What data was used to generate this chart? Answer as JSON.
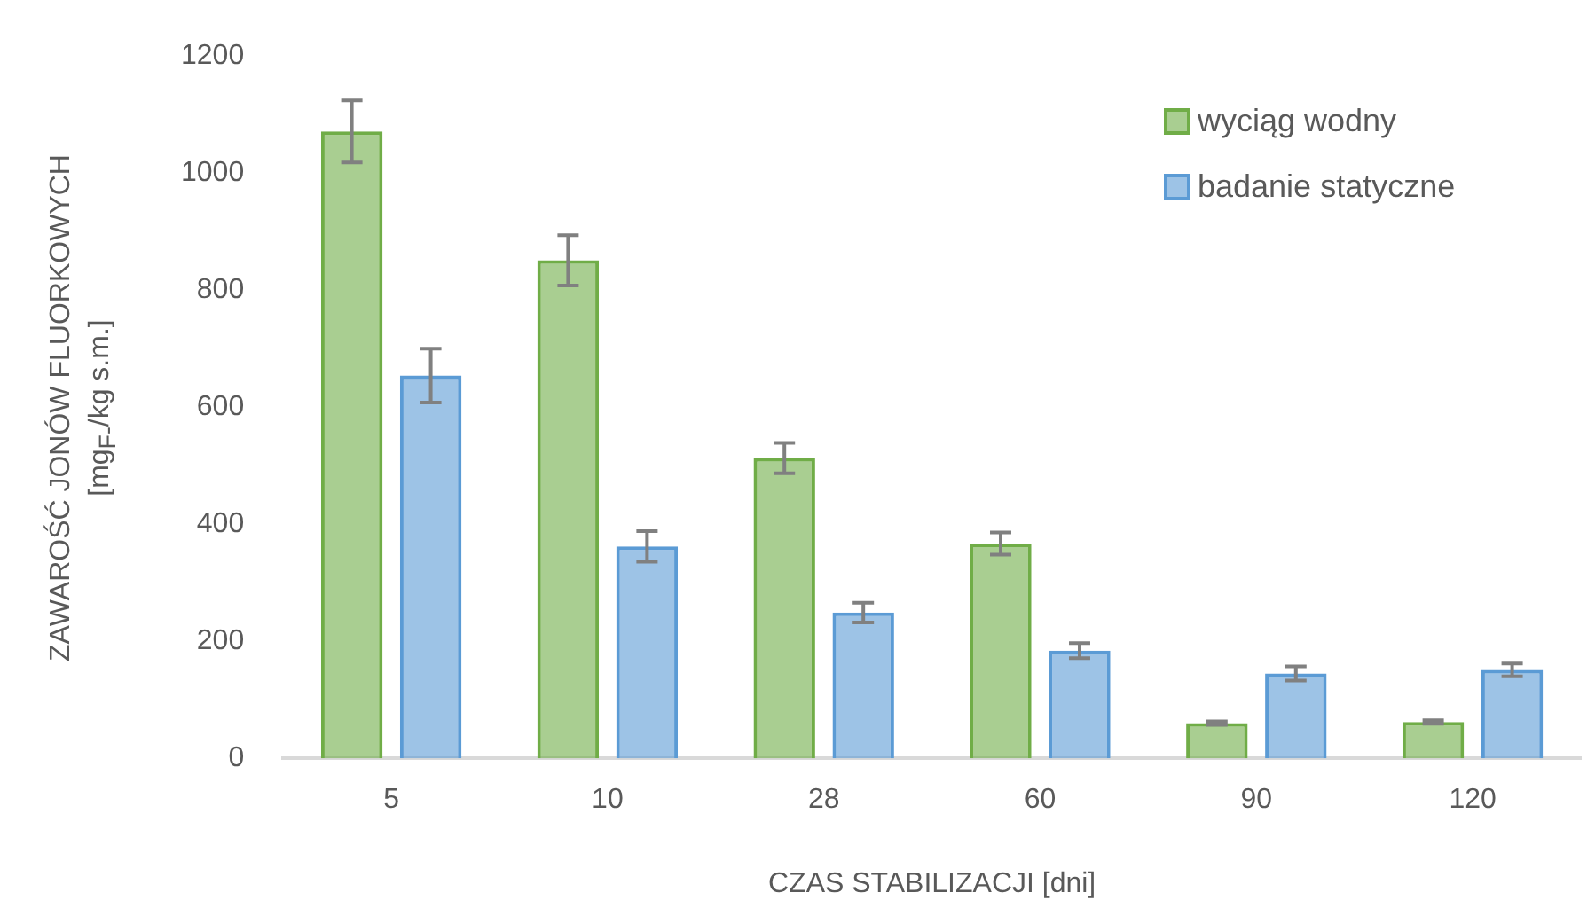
{
  "chart_data": {
    "type": "bar",
    "xlabel": "CZAS STABILIZACJI [dni]",
    "ylabel": "ZAWAROŚĆ JONÓW FLUORKOWYCH\n[mg$_{F-}$/kg s.m.]",
    "categories": [
      "5",
      "10",
      "28",
      "60",
      "90",
      "120"
    ],
    "series": [
      {
        "name": "wyciąg wodny",
        "color": "#70ad47",
        "values": [
          1071,
          851,
          513,
          367,
          60,
          62
        ],
        "errors": [
          53,
          43,
          26,
          19,
          3,
          3
        ]
      },
      {
        "name": "badanie statyczne",
        "color": "#5b9bd5",
        "values": [
          654,
          362,
          249,
          184,
          145,
          151
        ],
        "errors": [
          46,
          26,
          17,
          13,
          12,
          11
        ]
      }
    ],
    "ylim": [
      0,
      1200
    ],
    "yticks": [
      0,
      200,
      400,
      600,
      800,
      1000,
      1200
    ],
    "grid": false,
    "legend": "top right"
  }
}
